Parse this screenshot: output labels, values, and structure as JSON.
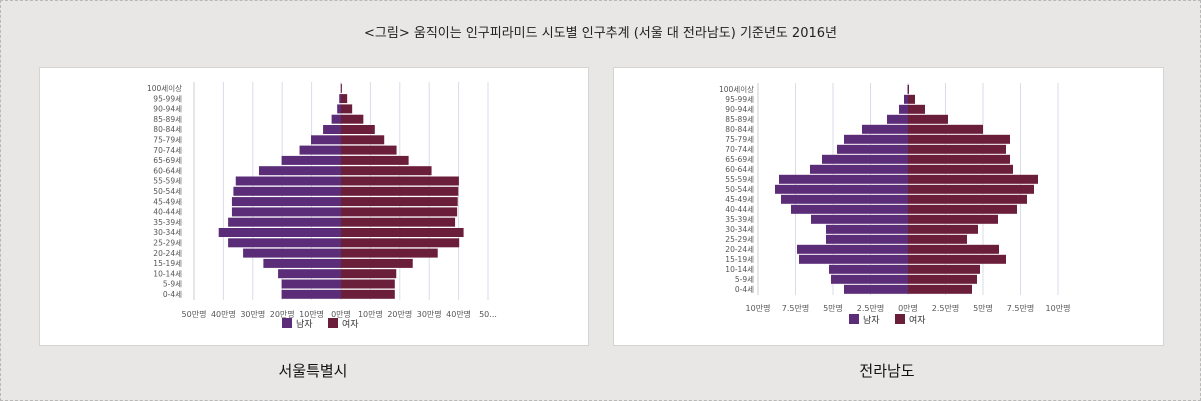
{
  "page": {
    "title": "<그림> 움직이는 인구피라미드 시도별 인구추계 (서울 대 전라남도) 기준년도 2016년"
  },
  "colors": {
    "male": "#5b2c78",
    "female": "#6b1e3a",
    "grid": "#d8dde8",
    "axis_text": "#555555"
  },
  "chart_data": [
    {
      "type": "bar",
      "orientation": "horizontal-pyramid",
      "caption": "서울특별시",
      "categories": [
        "100세이상",
        "95-99세",
        "90-94세",
        "85-89세",
        "80-84세",
        "75-79세",
        "70-74세",
        "65-69세",
        "60-64세",
        "55-59세",
        "50-54세",
        "45-49세",
        "40-44세",
        "35-39세",
        "30-34세",
        "25-29세",
        "20-24세",
        "15-19세",
        "10-14세",
        "5-9세",
        "0-4세"
      ],
      "series": [
        {
          "name": "남자",
          "values": [
            0.1,
            0.6,
            1.3,
            3.2,
            6.1,
            10.2,
            14.1,
            20.2,
            27.9,
            35.8,
            36.6,
            37.1,
            37.1,
            38.4,
            41.6,
            38.4,
            33.3,
            26.4,
            21.4,
            20.2,
            20.2
          ]
        },
        {
          "name": "여자",
          "values": [
            0.3,
            2.1,
            3.8,
            7.6,
            11.5,
            14.7,
            18.9,
            23.0,
            30.8,
            40.1,
            39.9,
            39.7,
            39.5,
            38.8,
            41.7,
            40.2,
            32.9,
            24.4,
            18.8,
            18.3,
            18.3
          ]
        }
      ],
      "xlim": [
        -50,
        50
      ],
      "xticks": [
        "50만명",
        "40만명",
        "30만명",
        "20만명",
        "10만명",
        "0만명",
        "10만명",
        "20만명",
        "30만명",
        "40만명",
        "50..."
      ],
      "legend": "bottom"
    },
    {
      "type": "bar",
      "orientation": "horizontal-pyramid",
      "caption": "전라남도",
      "categories": [
        "100세이상",
        "95-99세",
        "90-94세",
        "85-89세",
        "80-84세",
        "75-79세",
        "70-74세",
        "65-69세",
        "60-64세",
        "55-59세",
        "50-54세",
        "45-49세",
        "40-44세",
        "35-39세",
        "30-34세",
        "25-29세",
        "20-24세",
        "15-19세",
        "10-14세",
        "5-9세",
        "0-4세"
      ],
      "series": [
        {
          "name": "남자",
          "values": [
            0.05,
            0.4,
            0.9,
            2.1,
            4.6,
            6.4,
            7.1,
            8.6,
            9.8,
            12.9,
            13.3,
            12.7,
            11.7,
            9.7,
            8.2,
            8.2,
            11.1,
            10.9,
            7.9,
            7.7,
            6.4
          ]
        },
        {
          "name": "여자",
          "values": [
            0.1,
            0.7,
            1.7,
            4.0,
            7.5,
            10.2,
            9.8,
            10.2,
            10.5,
            13.0,
            12.6,
            11.9,
            10.9,
            9.0,
            7.0,
            5.9,
            9.1,
            9.8,
            7.2,
            6.9,
            6.4
          ]
        }
      ],
      "xlim": [
        -15,
        15
      ],
      "xticks": [
        "10만명",
        "7.5만명",
        "5만명",
        "2.5만명",
        "0만명",
        "2.5만명",
        "5만명",
        "7.5만명",
        "10만명"
      ],
      "legend": "bottom"
    }
  ]
}
